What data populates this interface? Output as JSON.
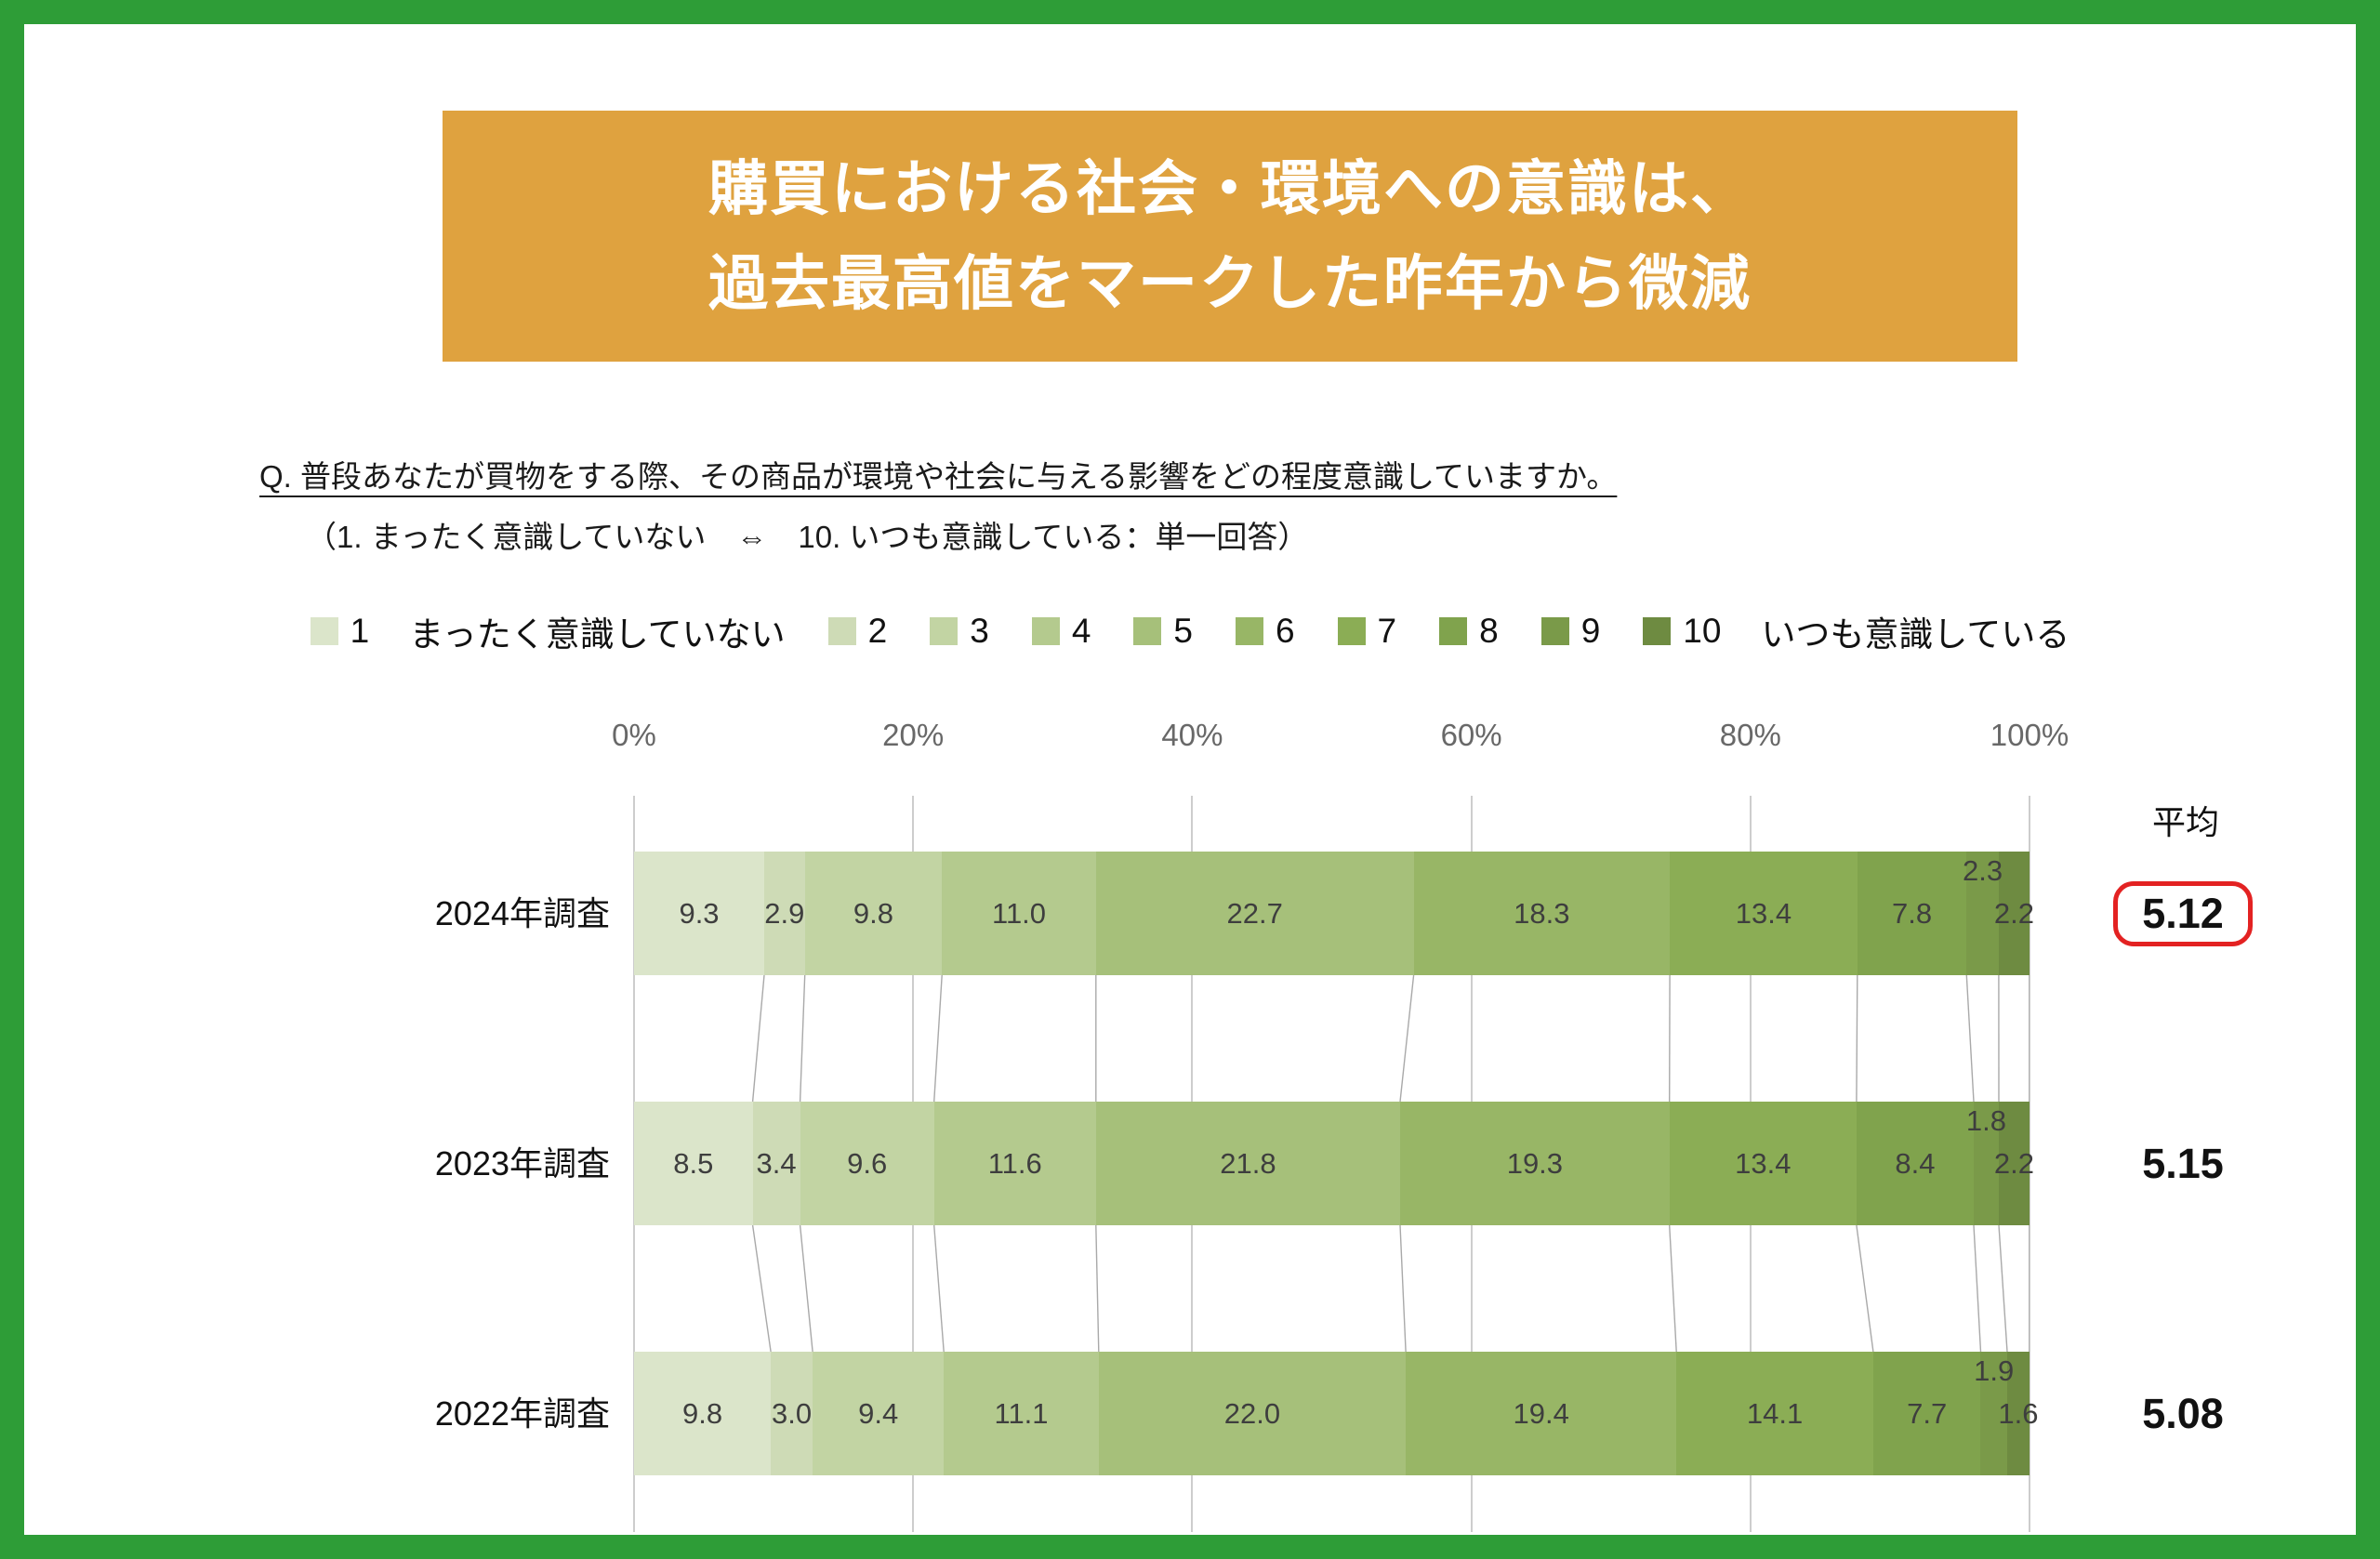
{
  "frame": {
    "border_color": "#2e9d37"
  },
  "banner": {
    "bg_color": "#dfa23f",
    "title_line1": "購買における社会・環境への意識は、",
    "title_line2": "過去最高値をマークした昨年から微減"
  },
  "question": {
    "line1": "Q. 普段あなたが買物をする際、その商品が環境や社会に与える影響をどの程度意識していますか。",
    "line2": "（1. まったく意識していない　⇔　10. いつも意識している：単一回答）"
  },
  "legend": {
    "items": [
      {
        "value": "1",
        "suffix": "まったく意識していない"
      },
      {
        "value": "2"
      },
      {
        "value": "3"
      },
      {
        "value": "4"
      },
      {
        "value": "5"
      },
      {
        "value": "6"
      },
      {
        "value": "7"
      },
      {
        "value": "8"
      },
      {
        "value": "9"
      },
      {
        "value": "10",
        "suffix": "いつも意識している"
      }
    ]
  },
  "chart_data": {
    "type": "bar",
    "variant": "horizontal-stacked-100pct",
    "title": "購買における社会・環境への意識は、過去最高値をマークした昨年から微減",
    "x_axis": {
      "tick_labels": [
        "0%",
        "20%",
        "40%",
        "60%",
        "80%",
        "100%"
      ],
      "range": [
        0,
        100
      ],
      "grid": true
    },
    "average_column_header": "平均",
    "scale_categories": [
      "1",
      "2",
      "3",
      "4",
      "5",
      "6",
      "7",
      "8",
      "9",
      "10"
    ],
    "scale_min_label": "まったく意識していない",
    "scale_max_label": "いつも意識している",
    "scale_colors": [
      "#dbe5ca",
      "#cedbb6",
      "#c2d4a3",
      "#b4ca8e",
      "#a6c07a",
      "#98b666",
      "#8bad55",
      "#80a34d",
      "#7a9a49",
      "#6e8b41"
    ],
    "highlight_box_color": "#e32222",
    "rows": [
      {
        "label": "2024年調査",
        "values": [
          9.3,
          2.9,
          9.8,
          11.0,
          22.7,
          18.3,
          13.4,
          7.8,
          2.3,
          2.2
        ],
        "average": "5.12",
        "highlighted": true
      },
      {
        "label": "2023年調査",
        "values": [
          8.5,
          3.4,
          9.6,
          11.6,
          21.8,
          19.3,
          13.4,
          8.4,
          1.8,
          2.2
        ],
        "average": "5.15",
        "highlighted": false
      },
      {
        "label": "2022年調査",
        "values": [
          9.8,
          3.0,
          9.4,
          11.1,
          22.0,
          19.4,
          14.1,
          7.7,
          1.9,
          1.6
        ],
        "average": "5.08",
        "highlighted": false
      }
    ]
  }
}
